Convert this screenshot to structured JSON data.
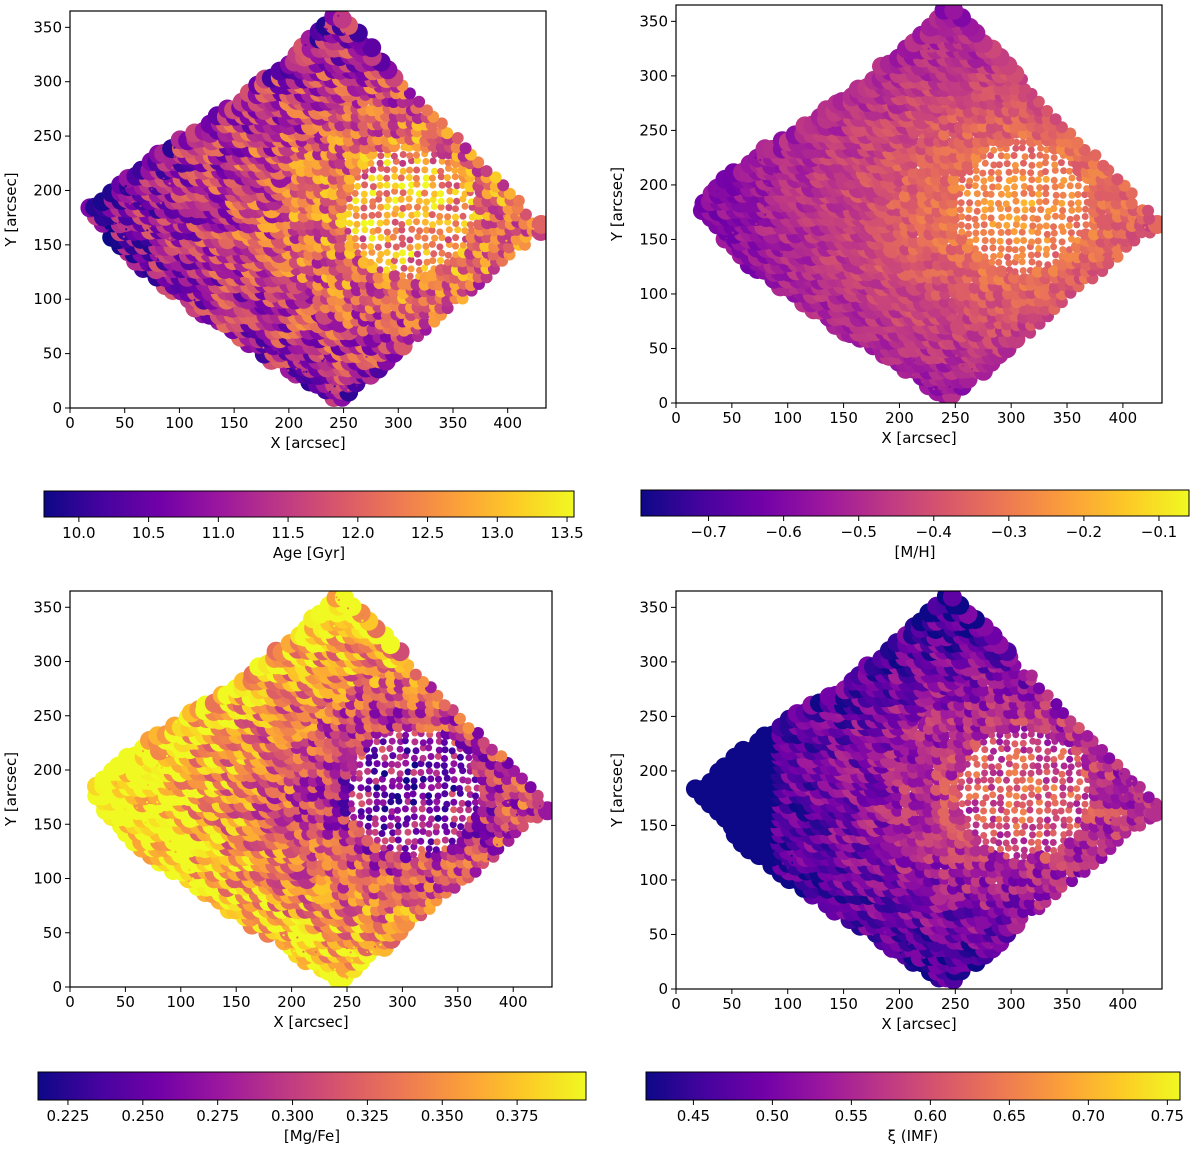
{
  "figure": {
    "colormap": "plasma",
    "colormap_stops": [
      "#0d0887",
      "#46039f",
      "#7201a8",
      "#9c179e",
      "#bd3786",
      "#d8576b",
      "#ed7953",
      "#fb9f3a",
      "#fdca26",
      "#f0f921"
    ]
  },
  "chart_data": [
    {
      "type": "heatmap",
      "panel": "top-left",
      "xlabel": "X [arcsec]",
      "ylabel": "Y [arcsec]",
      "xlim": [
        0,
        435
      ],
      "ylim": [
        0,
        365
      ],
      "xticks": [
        "0",
        "50",
        "100",
        "150",
        "200",
        "250",
        "300",
        "350",
        "400"
      ],
      "yticks": [
        "0",
        "50",
        "100",
        "150",
        "200",
        "250",
        "300",
        "350"
      ],
      "map_center": [
        305,
        180
      ],
      "colorbar": {
        "label": "Age [Gyr]",
        "range": [
          9.75,
          13.55
        ],
        "ticks": [
          "10.0",
          "10.5",
          "11.0",
          "11.5",
          "12.0",
          "12.5",
          "13.0",
          "13.5"
        ]
      }
    },
    {
      "type": "heatmap",
      "panel": "top-right",
      "xlabel": "X [arcsec]",
      "ylabel": "Y [arcsec]",
      "xlim": [
        0,
        435
      ],
      "ylim": [
        0,
        365
      ],
      "xticks": [
        "0",
        "50",
        "100",
        "150",
        "200",
        "250",
        "300",
        "350",
        "400"
      ],
      "yticks": [
        "0",
        "50",
        "100",
        "150",
        "200",
        "250",
        "300",
        "350"
      ],
      "map_center": [
        310,
        180
      ],
      "colorbar": {
        "label": "[M/H]",
        "range": [
          -0.79,
          -0.06
        ],
        "ticks": [
          "−0.7",
          "−0.6",
          "−0.5",
          "−0.4",
          "−0.3",
          "−0.2",
          "−0.1"
        ]
      }
    },
    {
      "type": "heatmap",
      "panel": "bottom-left",
      "xlabel": "X [arcsec]",
      "ylabel": "Y [arcsec]",
      "xlim": [
        0,
        435
      ],
      "ylim": [
        0,
        365
      ],
      "xticks": [
        "0",
        "50",
        "100",
        "150",
        "200",
        "250",
        "300",
        "350",
        "400"
      ],
      "yticks": [
        "0",
        "50",
        "100",
        "150",
        "200",
        "250",
        "300",
        "350"
      ],
      "map_center": [
        310,
        180
      ],
      "colorbar": {
        "label": "[Mg/Fe]",
        "range": [
          0.215,
          0.398
        ],
        "ticks": [
          "0.225",
          "0.250",
          "0.275",
          "0.300",
          "0.325",
          "0.350",
          "0.375"
        ]
      }
    },
    {
      "type": "heatmap",
      "panel": "bottom-right",
      "xlabel": "X [arcsec]",
      "ylabel": "Y [arcsec]",
      "xlim": [
        0,
        435
      ],
      "ylim": [
        0,
        365
      ],
      "xticks": [
        "0",
        "50",
        "100",
        "150",
        "200",
        "250",
        "300",
        "350",
        "400"
      ],
      "yticks": [
        "0",
        "50",
        "100",
        "150",
        "200",
        "250",
        "300",
        "350"
      ],
      "map_center": [
        310,
        180
      ],
      "colorbar": {
        "label": "ξ (IMF)",
        "range": [
          0.42,
          0.758
        ],
        "ticks": [
          "0.45",
          "0.50",
          "0.55",
          "0.60",
          "0.65",
          "0.70",
          "0.75"
        ]
      }
    }
  ]
}
